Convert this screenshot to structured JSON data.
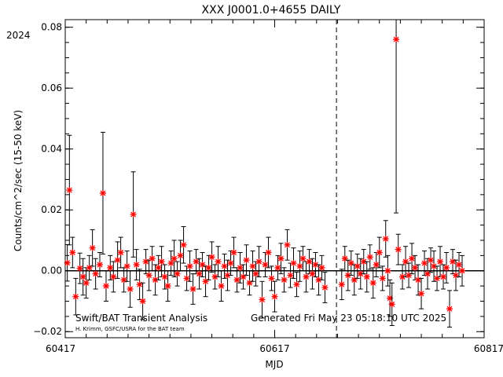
{
  "chart_data": {
    "type": "scatter",
    "title": "XXX J0001.0+4655 DAILY",
    "year_label": "2024",
    "xlabel": "MJD",
    "ylabel": "Counts/cm^2/sec (15-50 keV)",
    "xlim": [
      60417,
      60817
    ],
    "ylim": [
      -0.022,
      0.0825
    ],
    "x_ticks": [
      60417,
      60617,
      60817
    ],
    "y_ticks": [
      -0.02,
      0.0,
      0.02,
      0.04,
      0.06,
      0.08
    ],
    "y_tick_labels": [
      "−0.02",
      "0.00",
      "0.02",
      "0.04",
      "0.06",
      "0.08"
    ],
    "vertical_dashed_line_x": 60676,
    "zero_line_y": 0,
    "marker_color": "#ff0000",
    "errorbar_color": "#000000",
    "annotation_left": "Swift/BAT Transient Analysis",
    "annotation_left_small": "H. Krimm, GSFC/USRA for the BAT team",
    "annotation_right": "Generated Fri May 23 05:18:10 UTC 2025",
    "points": [
      {
        "x": 60419,
        "y": 0.0026,
        "err": 0.006
      },
      {
        "x": 60421,
        "y": 0.0265,
        "err": 0.018
      },
      {
        "x": 60424,
        "y": 0.006,
        "err": 0.005
      },
      {
        "x": 60427,
        "y": -0.0085,
        "err": 0.006
      },
      {
        "x": 60431,
        "y": 0.0008,
        "err": 0.005
      },
      {
        "x": 60434,
        "y": -0.002,
        "err": 0.006
      },
      {
        "x": 60437,
        "y": -0.004,
        "err": 0.005
      },
      {
        "x": 60440,
        "y": 0.001,
        "err": 0.004
      },
      {
        "x": 60443,
        "y": 0.0075,
        "err": 0.006
      },
      {
        "x": 60446,
        "y": -0.001,
        "err": 0.005
      },
      {
        "x": 60450,
        "y": 0.002,
        "err": 0.004
      },
      {
        "x": 60453,
        "y": 0.0255,
        "err": 0.02
      },
      {
        "x": 60456,
        "y": -0.005,
        "err": 0.005
      },
      {
        "x": 60460,
        "y": 0.001,
        "err": 0.004
      },
      {
        "x": 60463,
        "y": -0.002,
        "err": 0.005
      },
      {
        "x": 60467,
        "y": 0.0035,
        "err": 0.006
      },
      {
        "x": 60470,
        "y": 0.006,
        "err": 0.005
      },
      {
        "x": 60473,
        "y": -0.003,
        "err": 0.004
      },
      {
        "x": 60476,
        "y": 0.0015,
        "err": 0.005
      },
      {
        "x": 60479,
        "y": -0.006,
        "err": 0.006
      },
      {
        "x": 60482,
        "y": 0.0185,
        "err": 0.014
      },
      {
        "x": 60485,
        "y": 0.002,
        "err": 0.005
      },
      {
        "x": 60488,
        "y": -0.0045,
        "err": 0.005
      },
      {
        "x": 60491,
        "y": -0.01,
        "err": 0.006
      },
      {
        "x": 60494,
        "y": 0.003,
        "err": 0.004
      },
      {
        "x": 60497,
        "y": -0.0015,
        "err": 0.005
      },
      {
        "x": 60500,
        "y": 0.004,
        "err": 0.004
      },
      {
        "x": 60503,
        "y": -0.003,
        "err": 0.005
      },
      {
        "x": 60506,
        "y": 0.001,
        "err": 0.004
      },
      {
        "x": 60509,
        "y": 0.003,
        "err": 0.005
      },
      {
        "x": 60512,
        "y": -0.002,
        "err": 0.004
      },
      {
        "x": 60515,
        "y": -0.005,
        "err": 0.005
      },
      {
        "x": 60518,
        "y": 0.0025,
        "err": 0.004
      },
      {
        "x": 60521,
        "y": 0.004,
        "err": 0.006
      },
      {
        "x": 60524,
        "y": -0.001,
        "err": 0.004
      },
      {
        "x": 60527,
        "y": 0.005,
        "err": 0.005
      },
      {
        "x": 60530,
        "y": 0.0085,
        "err": 0.006
      },
      {
        "x": 60533,
        "y": -0.0025,
        "err": 0.004
      },
      {
        "x": 60536,
        "y": 0.0015,
        "err": 0.005
      },
      {
        "x": 60539,
        "y": -0.006,
        "err": 0.005
      },
      {
        "x": 60542,
        "y": 0.003,
        "err": 0.004
      },
      {
        "x": 60545,
        "y": -0.001,
        "err": 0.005
      },
      {
        "x": 60548,
        "y": 0.002,
        "err": 0.004
      },
      {
        "x": 60551,
        "y": -0.0035,
        "err": 0.005
      },
      {
        "x": 60554,
        "y": 0.001,
        "err": 0.004
      },
      {
        "x": 60557,
        "y": 0.0045,
        "err": 0.005
      },
      {
        "x": 60560,
        "y": -0.002,
        "err": 0.004
      },
      {
        "x": 60563,
        "y": 0.003,
        "err": 0.005
      },
      {
        "x": 60566,
        "y": -0.005,
        "err": 0.005
      },
      {
        "x": 60569,
        "y": 0.0015,
        "err": 0.004
      },
      {
        "x": 60572,
        "y": -0.0015,
        "err": 0.005
      },
      {
        "x": 60575,
        "y": 0.0025,
        "err": 0.004
      },
      {
        "x": 60578,
        "y": 0.006,
        "err": 0.005
      },
      {
        "x": 60581,
        "y": -0.003,
        "err": 0.004
      },
      {
        "x": 60584,
        "y": 0.001,
        "err": 0.005
      },
      {
        "x": 60587,
        "y": -0.002,
        "err": 0.004
      },
      {
        "x": 60590,
        "y": 0.0035,
        "err": 0.005
      },
      {
        "x": 60593,
        "y": -0.004,
        "err": 0.004
      },
      {
        "x": 60596,
        "y": 0.0015,
        "err": 0.005
      },
      {
        "x": 60599,
        "y": -0.001,
        "err": 0.004
      },
      {
        "x": 60602,
        "y": 0.003,
        "err": 0.005
      },
      {
        "x": 60605,
        "y": -0.0095,
        "err": 0.006
      },
      {
        "x": 60608,
        "y": 0.002,
        "err": 0.004
      },
      {
        "x": 60611,
        "y": 0.006,
        "err": 0.005
      },
      {
        "x": 60614,
        "y": -0.0025,
        "err": 0.004
      },
      {
        "x": 60617,
        "y": -0.0085,
        "err": 0.005
      },
      {
        "x": 60620,
        "y": 0.001,
        "err": 0.004
      },
      {
        "x": 60623,
        "y": 0.004,
        "err": 0.005
      },
      {
        "x": 60626,
        "y": -0.003,
        "err": 0.004
      },
      {
        "x": 60629,
        "y": 0.0085,
        "err": 0.005
      },
      {
        "x": 60632,
        "y": -0.0015,
        "err": 0.004
      },
      {
        "x": 60635,
        "y": 0.0025,
        "err": 0.005
      },
      {
        "x": 60638,
        "y": -0.0045,
        "err": 0.004
      },
      {
        "x": 60641,
        "y": 0.0015,
        "err": 0.005
      },
      {
        "x": 60644,
        "y": 0.004,
        "err": 0.004
      },
      {
        "x": 60647,
        "y": -0.002,
        "err": 0.005
      },
      {
        "x": 60650,
        "y": 0.003,
        "err": 0.004
      },
      {
        "x": 60653,
        "y": -0.001,
        "err": 0.005
      },
      {
        "x": 60656,
        "y": 0.002,
        "err": 0.004
      },
      {
        "x": 60659,
        "y": -0.003,
        "err": 0.005
      },
      {
        "x": 60662,
        "y": 0.001,
        "err": 0.004
      },
      {
        "x": 60665,
        "y": -0.0055,
        "err": 0.005
      },
      {
        "x": 60681,
        "y": -0.0045,
        "err": 0.005
      },
      {
        "x": 60684,
        "y": 0.004,
        "err": 0.004
      },
      {
        "x": 60687,
        "y": -0.0015,
        "err": 0.005
      },
      {
        "x": 60690,
        "y": 0.0025,
        "err": 0.004
      },
      {
        "x": 60693,
        "y": -0.003,
        "err": 0.005
      },
      {
        "x": 60696,
        "y": 0.0015,
        "err": 0.004
      },
      {
        "x": 60699,
        "y": -0.001,
        "err": 0.005
      },
      {
        "x": 60702,
        "y": 0.003,
        "err": 0.004
      },
      {
        "x": 60705,
        "y": -0.002,
        "err": 0.005
      },
      {
        "x": 60708,
        "y": 0.0045,
        "err": 0.004
      },
      {
        "x": 60711,
        "y": -0.004,
        "err": 0.005
      },
      {
        "x": 60714,
        "y": 0.002,
        "err": 0.004
      },
      {
        "x": 60717,
        "y": 0.006,
        "err": 0.005
      },
      {
        "x": 60720,
        "y": -0.0025,
        "err": 0.004
      },
      {
        "x": 60723,
        "y": 0.0105,
        "err": 0.006
      },
      {
        "x": 60725,
        "y": 0.0,
        "err": 0.005
      },
      {
        "x": 60727,
        "y": -0.009,
        "err": 0.006
      },
      {
        "x": 60729,
        "y": -0.011,
        "err": 0.007
      },
      {
        "x": 60733,
        "y": 0.076,
        "err": 0.057
      },
      {
        "x": 60735,
        "y": 0.007,
        "err": 0.005
      },
      {
        "x": 60739,
        "y": -0.002,
        "err": 0.004
      },
      {
        "x": 60742,
        "y": 0.003,
        "err": 0.005
      },
      {
        "x": 60745,
        "y": -0.0015,
        "err": 0.004
      },
      {
        "x": 60748,
        "y": 0.004,
        "err": 0.005
      },
      {
        "x": 60751,
        "y": 0.001,
        "err": 0.004
      },
      {
        "x": 60754,
        "y": -0.003,
        "err": 0.005
      },
      {
        "x": 60757,
        "y": -0.0075,
        "err": 0.005
      },
      {
        "x": 60760,
        "y": 0.0025,
        "err": 0.004
      },
      {
        "x": 60763,
        "y": -0.001,
        "err": 0.005
      },
      {
        "x": 60766,
        "y": 0.0035,
        "err": 0.004
      },
      {
        "x": 60769,
        "y": 0.0015,
        "err": 0.005
      },
      {
        "x": 60772,
        "y": -0.0025,
        "err": 0.004
      },
      {
        "x": 60775,
        "y": 0.003,
        "err": 0.005
      },
      {
        "x": 60778,
        "y": -0.002,
        "err": 0.004
      },
      {
        "x": 60781,
        "y": 0.001,
        "err": 0.005
      },
      {
        "x": 60784,
        "y": -0.0125,
        "err": 0.006
      },
      {
        "x": 60787,
        "y": 0.003,
        "err": 0.004
      },
      {
        "x": 60790,
        "y": -0.0015,
        "err": 0.005
      },
      {
        "x": 60793,
        "y": 0.002,
        "err": 0.004
      },
      {
        "x": 60796,
        "y": 0.0,
        "err": 0.005
      }
    ]
  }
}
